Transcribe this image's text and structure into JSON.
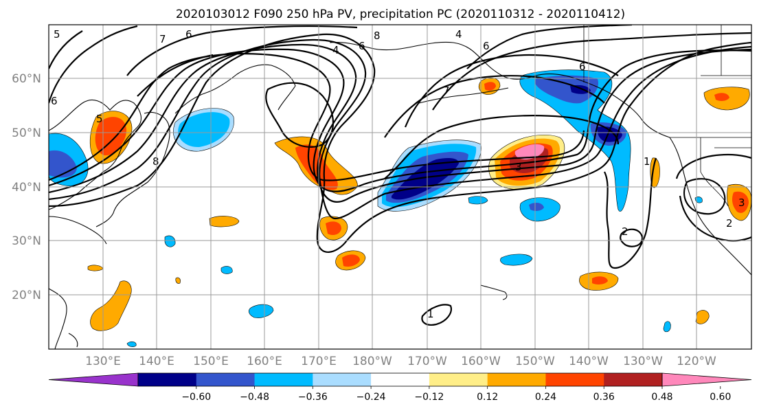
{
  "title": "2020103012 F090 250 hPa PV, precipitation PC (2020110312 - 2020110412)",
  "lat_labels": [
    "60°N",
    "50°N",
    "40°N",
    "30°N",
    "20°N"
  ],
  "lon_labels": [
    "130°E",
    "140°E",
    "150°E",
    "160°E",
    "170°E",
    "180°W",
    "170°W",
    "160°W",
    "150°W",
    "140°W",
    "130°W",
    "120°W"
  ],
  "colorbar": {
    "colors": [
      "#9933cc",
      "#000088",
      "#3355cc",
      "#00bbff",
      "#aaddff",
      "#ffffff",
      "#ffee88",
      "#ffaa00",
      "#ff4400",
      "#b02020",
      "#ff88bb"
    ],
    "tick_labels": [
      "−0.60",
      "−0.48",
      "−0.36",
      "−0.24",
      "−0.12",
      "0.12",
      "0.24",
      "0.36",
      "0.48",
      "0.60"
    ]
  },
  "contour_labels": [
    "5",
    "6",
    "7",
    "6",
    "4",
    "8",
    "6",
    "4",
    "6",
    "7",
    "6",
    "5",
    "8",
    "3",
    "1",
    "2",
    "1",
    "2",
    "3"
  ]
}
